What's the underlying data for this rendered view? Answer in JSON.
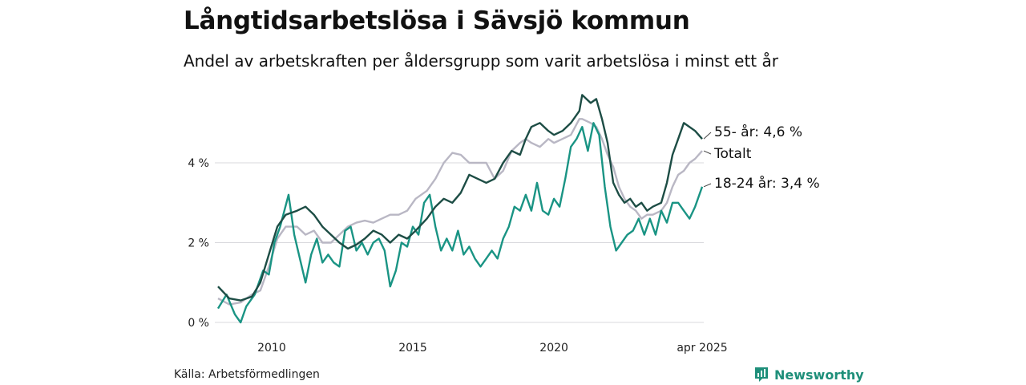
{
  "header": {
    "title": "Långtidsarbetslösa i Sävsjö kommun",
    "subtitle": "Andel av arbetskraften per åldersgrupp som varit arbetslösa i minst ett år"
  },
  "footer": {
    "source": "Källa: Arbetsförmedlingen",
    "brand": "Newsworthy"
  },
  "colors": {
    "older": "#1d4d45",
    "total": "#b9b7c4",
    "young": "#1a9484",
    "grid": "#d9d9dd",
    "brand": "#1f8f7a"
  },
  "chart_data": {
    "type": "line",
    "title": "Långtidsarbetslösa i Sävsjö kommun",
    "subtitle": "Andel av arbetskraften per åldersgrupp som varit arbetslösa i minst ett år",
    "x_unit": "decimal year",
    "xlim": [
      2008.1,
      2025.25
    ],
    "ylim": [
      0,
      5.8
    ],
    "y_ticks": [
      0,
      2,
      4
    ],
    "y_tick_labels": [
      "0 %",
      "2 %",
      "4 %"
    ],
    "x_ticks": [
      2010,
      2015,
      2020,
      2025.25
    ],
    "x_tick_labels": [
      "2010",
      "2015",
      "2020",
      "apr 2025"
    ],
    "grid": "horizontal",
    "legend": "direct labels at line ends (right)",
    "series": [
      {
        "name": "55- år",
        "end_label": "55- år: 4,6 %",
        "color": "#1d4d45",
        "points": [
          [
            2008.1,
            0.9
          ],
          [
            2008.5,
            0.6
          ],
          [
            2008.9,
            0.55
          ],
          [
            2009.3,
            0.65
          ],
          [
            2009.6,
            1.0
          ],
          [
            2009.9,
            1.7
          ],
          [
            2010.2,
            2.4
          ],
          [
            2010.5,
            2.7
          ],
          [
            2010.9,
            2.8
          ],
          [
            2011.2,
            2.9
          ],
          [
            2011.5,
            2.7
          ],
          [
            2011.8,
            2.4
          ],
          [
            2012.1,
            2.2
          ],
          [
            2012.4,
            2.0
          ],
          [
            2012.7,
            1.85
          ],
          [
            2013.0,
            1.95
          ],
          [
            2013.3,
            2.1
          ],
          [
            2013.6,
            2.3
          ],
          [
            2013.9,
            2.2
          ],
          [
            2014.2,
            2.0
          ],
          [
            2014.5,
            2.2
          ],
          [
            2014.8,
            2.1
          ],
          [
            2015.1,
            2.3
          ],
          [
            2015.5,
            2.6
          ],
          [
            2015.8,
            2.9
          ],
          [
            2016.1,
            3.1
          ],
          [
            2016.4,
            3.0
          ],
          [
            2016.7,
            3.25
          ],
          [
            2017.0,
            3.7
          ],
          [
            2017.3,
            3.6
          ],
          [
            2017.6,
            3.5
          ],
          [
            2017.9,
            3.6
          ],
          [
            2018.2,
            4.0
          ],
          [
            2018.5,
            4.3
          ],
          [
            2018.8,
            4.2
          ],
          [
            2019.0,
            4.6
          ],
          [
            2019.2,
            4.9
          ],
          [
            2019.5,
            5.0
          ],
          [
            2019.8,
            4.8
          ],
          [
            2020.0,
            4.7
          ],
          [
            2020.3,
            4.8
          ],
          [
            2020.6,
            5.0
          ],
          [
            2020.9,
            5.3
          ],
          [
            2021.0,
            5.7
          ],
          [
            2021.3,
            5.5
          ],
          [
            2021.5,
            5.6
          ],
          [
            2021.7,
            5.1
          ],
          [
            2021.9,
            4.5
          ],
          [
            2022.1,
            3.5
          ],
          [
            2022.3,
            3.2
          ],
          [
            2022.5,
            3.0
          ],
          [
            2022.7,
            3.1
          ],
          [
            2022.9,
            2.9
          ],
          [
            2023.1,
            3.0
          ],
          [
            2023.3,
            2.8
          ],
          [
            2023.5,
            2.9
          ],
          [
            2023.8,
            3.0
          ],
          [
            2024.0,
            3.5
          ],
          [
            2024.2,
            4.2
          ],
          [
            2024.4,
            4.6
          ],
          [
            2024.6,
            5.0
          ],
          [
            2024.8,
            4.9
          ],
          [
            2025.0,
            4.8
          ],
          [
            2025.25,
            4.6
          ]
        ]
      },
      {
        "name": "Totalt",
        "end_label": "Totalt",
        "color": "#b9b7c4",
        "points": [
          [
            2008.1,
            0.6
          ],
          [
            2008.5,
            0.45
          ],
          [
            2008.9,
            0.5
          ],
          [
            2009.3,
            0.7
          ],
          [
            2009.6,
            0.8
          ],
          [
            2009.9,
            1.4
          ],
          [
            2010.2,
            2.1
          ],
          [
            2010.5,
            2.4
          ],
          [
            2010.9,
            2.4
          ],
          [
            2011.2,
            2.2
          ],
          [
            2011.5,
            2.3
          ],
          [
            2011.8,
            2.0
          ],
          [
            2012.1,
            2.0
          ],
          [
            2012.4,
            2.2
          ],
          [
            2012.7,
            2.4
          ],
          [
            2013.0,
            2.5
          ],
          [
            2013.3,
            2.55
          ],
          [
            2013.6,
            2.5
          ],
          [
            2013.9,
            2.6
          ],
          [
            2014.2,
            2.7
          ],
          [
            2014.5,
            2.7
          ],
          [
            2014.8,
            2.8
          ],
          [
            2015.1,
            3.1
          ],
          [
            2015.5,
            3.3
          ],
          [
            2015.8,
            3.6
          ],
          [
            2016.1,
            4.0
          ],
          [
            2016.4,
            4.25
          ],
          [
            2016.7,
            4.2
          ],
          [
            2017.0,
            4.0
          ],
          [
            2017.3,
            4.0
          ],
          [
            2017.6,
            4.0
          ],
          [
            2017.9,
            3.6
          ],
          [
            2018.2,
            3.8
          ],
          [
            2018.5,
            4.3
          ],
          [
            2018.8,
            4.5
          ],
          [
            2019.0,
            4.6
          ],
          [
            2019.2,
            4.5
          ],
          [
            2019.5,
            4.4
          ],
          [
            2019.8,
            4.6
          ],
          [
            2020.0,
            4.5
          ],
          [
            2020.3,
            4.6
          ],
          [
            2020.6,
            4.7
          ],
          [
            2020.9,
            5.1
          ],
          [
            2021.0,
            5.1
          ],
          [
            2021.3,
            5.0
          ],
          [
            2021.5,
            4.9
          ],
          [
            2021.7,
            4.6
          ],
          [
            2021.9,
            4.2
          ],
          [
            2022.1,
            3.9
          ],
          [
            2022.3,
            3.4
          ],
          [
            2022.5,
            3.1
          ],
          [
            2022.7,
            2.9
          ],
          [
            2022.9,
            2.8
          ],
          [
            2023.1,
            2.6
          ],
          [
            2023.3,
            2.7
          ],
          [
            2023.5,
            2.7
          ],
          [
            2023.8,
            2.8
          ],
          [
            2024.0,
            3.0
          ],
          [
            2024.2,
            3.4
          ],
          [
            2024.4,
            3.7
          ],
          [
            2024.6,
            3.8
          ],
          [
            2024.8,
            4.0
          ],
          [
            2025.0,
            4.1
          ],
          [
            2025.25,
            4.3
          ]
        ]
      },
      {
        "name": "18-24 år",
        "end_label": "18-24 år: 3,4 %",
        "color": "#1a9484",
        "points": [
          [
            2008.1,
            0.35
          ],
          [
            2008.4,
            0.7
          ],
          [
            2008.7,
            0.2
          ],
          [
            2008.9,
            0.0
          ],
          [
            2009.1,
            0.4
          ],
          [
            2009.4,
            0.7
          ],
          [
            2009.7,
            1.3
          ],
          [
            2009.9,
            1.2
          ],
          [
            2010.1,
            2.0
          ],
          [
            2010.3,
            2.4
          ],
          [
            2010.6,
            3.2
          ],
          [
            2010.8,
            2.2
          ],
          [
            2011.0,
            1.6
          ],
          [
            2011.2,
            1.0
          ],
          [
            2011.4,
            1.7
          ],
          [
            2011.6,
            2.1
          ],
          [
            2011.8,
            1.5
          ],
          [
            2012.0,
            1.7
          ],
          [
            2012.2,
            1.5
          ],
          [
            2012.4,
            1.4
          ],
          [
            2012.6,
            2.3
          ],
          [
            2012.8,
            2.4
          ],
          [
            2013.0,
            1.8
          ],
          [
            2013.2,
            2.0
          ],
          [
            2013.4,
            1.7
          ],
          [
            2013.6,
            2.0
          ],
          [
            2013.8,
            2.1
          ],
          [
            2014.0,
            1.8
          ],
          [
            2014.2,
            0.9
          ],
          [
            2014.4,
            1.3
          ],
          [
            2014.6,
            2.0
          ],
          [
            2014.8,
            1.9
          ],
          [
            2015.0,
            2.4
          ],
          [
            2015.2,
            2.2
          ],
          [
            2015.4,
            3.0
          ],
          [
            2015.6,
            3.2
          ],
          [
            2015.8,
            2.4
          ],
          [
            2016.0,
            1.8
          ],
          [
            2016.2,
            2.1
          ],
          [
            2016.4,
            1.8
          ],
          [
            2016.6,
            2.3
          ],
          [
            2016.8,
            1.7
          ],
          [
            2017.0,
            1.9
          ],
          [
            2017.2,
            1.6
          ],
          [
            2017.4,
            1.4
          ],
          [
            2017.6,
            1.6
          ],
          [
            2017.8,
            1.8
          ],
          [
            2018.0,
            1.6
          ],
          [
            2018.2,
            2.1
          ],
          [
            2018.4,
            2.4
          ],
          [
            2018.6,
            2.9
          ],
          [
            2018.8,
            2.8
          ],
          [
            2019.0,
            3.2
          ],
          [
            2019.2,
            2.8
          ],
          [
            2019.4,
            3.5
          ],
          [
            2019.6,
            2.8
          ],
          [
            2019.8,
            2.7
          ],
          [
            2020.0,
            3.1
          ],
          [
            2020.2,
            2.9
          ],
          [
            2020.4,
            3.6
          ],
          [
            2020.6,
            4.4
          ],
          [
            2020.8,
            4.6
          ],
          [
            2021.0,
            4.9
          ],
          [
            2021.2,
            4.3
          ],
          [
            2021.4,
            5.0
          ],
          [
            2021.6,
            4.7
          ],
          [
            2021.8,
            3.4
          ],
          [
            2022.0,
            2.4
          ],
          [
            2022.2,
            1.8
          ],
          [
            2022.4,
            2.0
          ],
          [
            2022.6,
            2.2
          ],
          [
            2022.8,
            2.3
          ],
          [
            2023.0,
            2.6
          ],
          [
            2023.2,
            2.2
          ],
          [
            2023.4,
            2.6
          ],
          [
            2023.6,
            2.2
          ],
          [
            2023.8,
            2.8
          ],
          [
            2024.0,
            2.5
          ],
          [
            2024.2,
            3.0
          ],
          [
            2024.4,
            3.0
          ],
          [
            2024.6,
            2.8
          ],
          [
            2024.8,
            2.6
          ],
          [
            2025.0,
            2.9
          ],
          [
            2025.25,
            3.4
          ]
        ]
      }
    ]
  }
}
